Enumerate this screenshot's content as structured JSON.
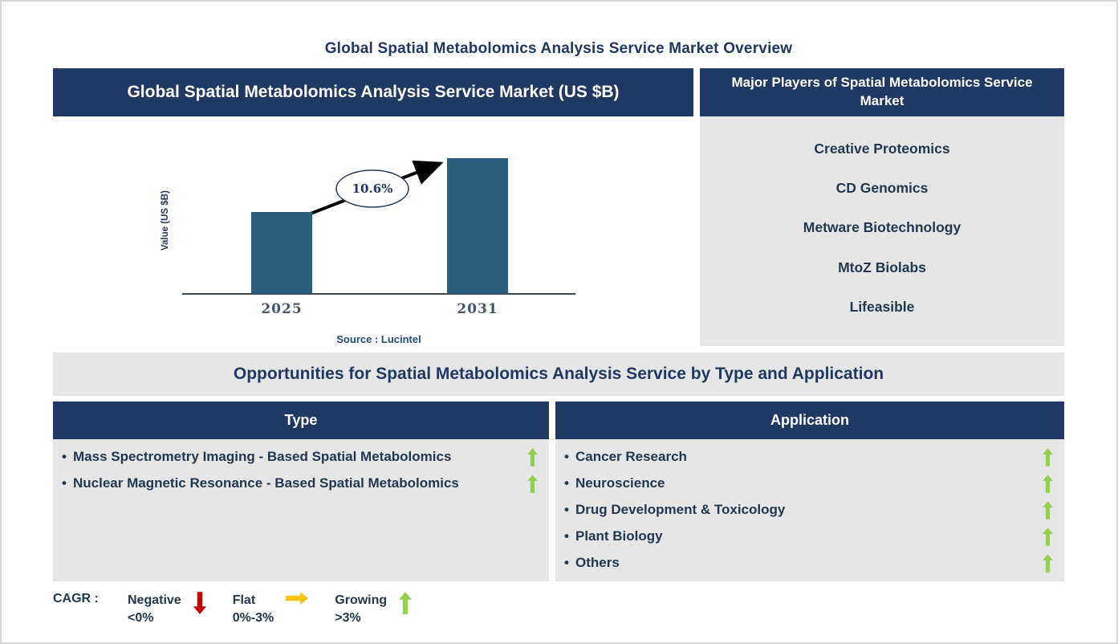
{
  "page": {
    "title": "Global Spatial Metabolomics Analysis Service Market Overview"
  },
  "market_chart_panel": {
    "header": "Global Spatial Metabolomics Analysis Service Market (US $B)",
    "source": "Source : Lucintel"
  },
  "chart_data": {
    "type": "bar",
    "title": "Global Spatial Metabolomics Analysis Service Market (US $B)",
    "categories": [
      "2025",
      "2031"
    ],
    "values_relative": [
      0.6,
      1.0
    ],
    "ylabel": "Value (US $B)",
    "cagr_label": "10.6%",
    "bar_color": "#2A5E7F",
    "legend_position": "none",
    "grid": false
  },
  "major_players_panel": {
    "header": "Major Players of Spatial Metabolomics Service Market",
    "players": [
      "Creative Proteomics",
      "CD Genomics",
      "Metware Biotechnology",
      "MtoZ Biolabs",
      "Lifeasible"
    ]
  },
  "opportunities": {
    "header": "Opportunities for Spatial Metabolomics Analysis Service by Type and Application",
    "type_panel": {
      "header": "Type",
      "items": [
        {
          "label": "Mass Spectrometry Imaging - Based Spatial Metabolomics",
          "trend": "growing"
        },
        {
          "label": "Nuclear Magnetic Resonance - Based Spatial Metabolomics",
          "trend": "growing"
        }
      ]
    },
    "application_panel": {
      "header": "Application",
      "items": [
        {
          "label": "Cancer Research",
          "trend": "growing"
        },
        {
          "label": "Neuroscience",
          "trend": "growing"
        },
        {
          "label": "Drug Development & Toxicology",
          "trend": "growing"
        },
        {
          "label": "Plant Biology",
          "trend": "growing"
        },
        {
          "label": "Others",
          "trend": "growing"
        }
      ]
    }
  },
  "legend": {
    "label": "CAGR :",
    "items": [
      {
        "name": "Negative",
        "range": "<0%",
        "direction": "down",
        "color": "#C00000"
      },
      {
        "name": "Flat",
        "range": "0%-3%",
        "direction": "right",
        "color": "#FFC000"
      },
      {
        "name": "Growing",
        "range": ">3%",
        "direction": "up",
        "color": "#92D050"
      }
    ]
  },
  "colors": {
    "navy_header": "#203864",
    "panel_gray": "#E7E6E6",
    "bar_blue": "#2A5E7F",
    "heading_navy": "#1F3864",
    "body_navy": "#22384E",
    "source_blue": "#1F4E79",
    "growing_green": "#92D050",
    "negative_red": "#C00000",
    "flat_yellow": "#FFC000"
  }
}
